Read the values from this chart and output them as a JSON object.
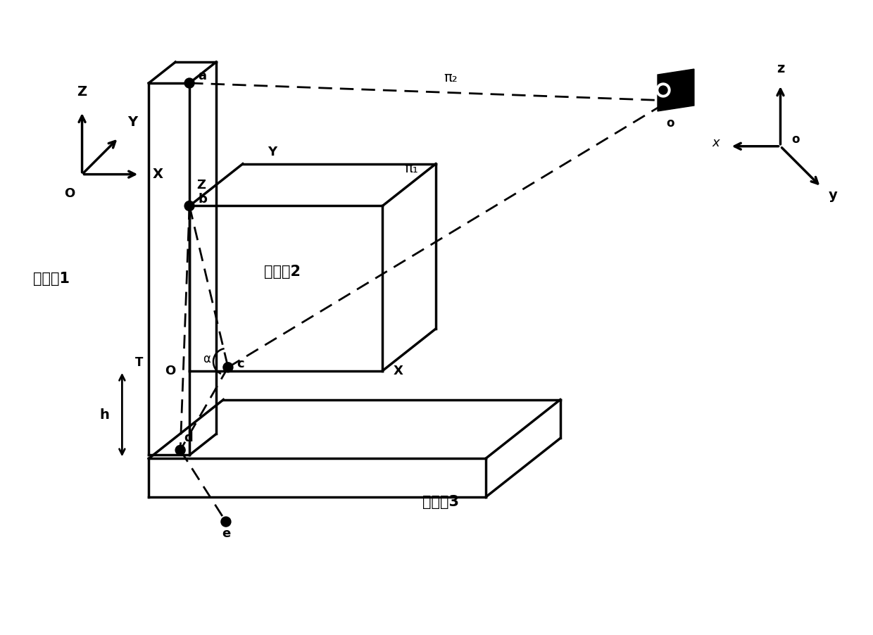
{
  "bg_color": "#ffffff",
  "fig_width": 12.4,
  "fig_height": 9.02,
  "dpi": 100,
  "labels": {
    "biaodingwu1": "标定物1",
    "biaodingwu2": "标定物2",
    "biaodingwu3": "标定物3",
    "Z_world": "Z",
    "Y_world": "Y",
    "X_world": "X",
    "O_world": "O",
    "Z_box": "Z",
    "Y_box": "Y",
    "X_box": "X",
    "O_box": "O",
    "pi1": "π₁",
    "pi2": "π₂",
    "pt_a": "a",
    "pt_b": "b",
    "pt_c": "c",
    "pt_d": "d",
    "pt_e": "e",
    "alpha": "α",
    "h_label": "h",
    "T_label": "T",
    "z_cam": "z",
    "x_cam": "x",
    "y_cam": "y",
    "o_cam": "o",
    "o_cam2": "o"
  }
}
